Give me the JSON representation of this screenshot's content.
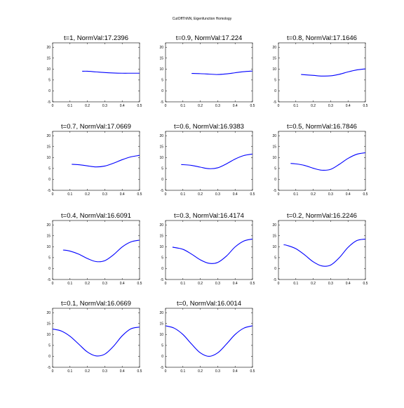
{
  "figure": {
    "suptitle": "CutOffThNN, Eigenfunction Homology"
  },
  "chart_data": [
    {
      "type": "line",
      "title": "t=1,  NormVal:17.2396",
      "xlim": [
        0,
        0.5
      ],
      "ylim": [
        -5,
        22
      ],
      "xticks": [
        0,
        0.1,
        0.2,
        0.3,
        0.4,
        0.5
      ],
      "yticks": [
        -5,
        0,
        5,
        10,
        15,
        20
      ],
      "color": "#0000ff",
      "x": [
        0.17,
        0.2,
        0.25,
        0.3,
        0.35,
        0.4,
        0.45,
        0.5
      ],
      "y": [
        9.0,
        9.0,
        8.7,
        8.4,
        8.2,
        8.1,
        8.1,
        8.1
      ]
    },
    {
      "type": "line",
      "title": "t=0.9, NormVal:17.224",
      "xlim": [
        0,
        0.5
      ],
      "ylim": [
        -5,
        22
      ],
      "xticks": [
        0,
        0.1,
        0.2,
        0.3,
        0.4,
        0.5
      ],
      "yticks": [
        -5,
        0,
        5,
        10,
        15,
        20
      ],
      "color": "#0000ff",
      "x": [
        0.15,
        0.2,
        0.25,
        0.3,
        0.35,
        0.4,
        0.45,
        0.5
      ],
      "y": [
        8.0,
        7.9,
        7.7,
        7.5,
        7.8,
        8.3,
        8.8,
        9.1
      ]
    },
    {
      "type": "line",
      "title": "t=0.8, NormVal:17.1646",
      "xlim": [
        0,
        0.5
      ],
      "ylim": [
        -5,
        22
      ],
      "xticks": [
        0,
        0.1,
        0.2,
        0.3,
        0.4,
        0.5
      ],
      "yticks": [
        -5,
        0,
        5,
        10,
        15,
        20
      ],
      "color": "#0000ff",
      "x": [
        0.13,
        0.2,
        0.25,
        0.3,
        0.35,
        0.4,
        0.45,
        0.5
      ],
      "y": [
        7.5,
        7.1,
        6.8,
        6.9,
        7.6,
        8.7,
        9.6,
        10.1
      ]
    },
    {
      "type": "line",
      "title": "t=0.7,   NormVal:17.0669",
      "xlim": [
        0,
        0.5
      ],
      "ylim": [
        -5,
        22
      ],
      "xticks": [
        0,
        0.1,
        0.2,
        0.3,
        0.4,
        0.5
      ],
      "yticks": [
        -5,
        0,
        5,
        10,
        15,
        20
      ],
      "color": "#0000ff",
      "x": [
        0.11,
        0.15,
        0.2,
        0.25,
        0.3,
        0.35,
        0.4,
        0.45,
        0.5
      ],
      "y": [
        6.9,
        6.7,
        6.2,
        5.7,
        6.1,
        7.4,
        9.0,
        10.3,
        11.0
      ]
    },
    {
      "type": "line",
      "title": "t=0.6,  NormVal:16.9383",
      "xlim": [
        0,
        0.5
      ],
      "ylim": [
        -5,
        22
      ],
      "xticks": [
        0,
        0.1,
        0.2,
        0.3,
        0.4,
        0.5
      ],
      "yticks": [
        -5,
        0,
        5,
        10,
        15,
        20
      ],
      "color": "#0000ff",
      "x": [
        0.09,
        0.15,
        0.2,
        0.25,
        0.3,
        0.35,
        0.4,
        0.45,
        0.5
      ],
      "y": [
        6.8,
        6.4,
        5.6,
        4.9,
        5.3,
        7.1,
        9.3,
        10.9,
        11.6
      ]
    },
    {
      "type": "line",
      "title": "t=0.5,  NormVal:16.7846",
      "xlim": [
        0,
        0.5
      ],
      "ylim": [
        -5,
        22
      ],
      "xticks": [
        0,
        0.1,
        0.2,
        0.3,
        0.4,
        0.5
      ],
      "yticks": [
        -5,
        0,
        5,
        10,
        15,
        20
      ],
      "color": "#0000ff",
      "x": [
        0.07,
        0.1,
        0.15,
        0.2,
        0.25,
        0.3,
        0.35,
        0.4,
        0.45,
        0.5
      ],
      "y": [
        7.3,
        7.1,
        6.4,
        5.1,
        4.2,
        4.6,
        6.9,
        9.6,
        11.5,
        12.2
      ]
    },
    {
      "type": "line",
      "title": "t=0.4,  NormVal:16.6091",
      "xlim": [
        0,
        0.5
      ],
      "ylim": [
        -5,
        22
      ],
      "xticks": [
        0,
        0.1,
        0.2,
        0.3,
        0.4,
        0.5
      ],
      "yticks": [
        -5,
        0,
        5,
        10,
        15,
        20
      ],
      "color": "#0000ff",
      "x": [
        0.06,
        0.1,
        0.15,
        0.2,
        0.25,
        0.3,
        0.35,
        0.4,
        0.45,
        0.5
      ],
      "y": [
        8.5,
        8.0,
        6.6,
        4.6,
        3.2,
        3.6,
        6.3,
        9.9,
        12.2,
        13.0
      ]
    },
    {
      "type": "line",
      "title": "t=0.3, NormVal:16.4174",
      "xlim": [
        0,
        0.5
      ],
      "ylim": [
        -5,
        22
      ],
      "xticks": [
        0,
        0.1,
        0.2,
        0.3,
        0.4,
        0.5
      ],
      "yticks": [
        -5,
        0,
        5,
        10,
        15,
        20
      ],
      "color": "#0000ff",
      "x": [
        0.04,
        0.1,
        0.15,
        0.2,
        0.25,
        0.3,
        0.35,
        0.4,
        0.45,
        0.5
      ],
      "y": [
        9.8,
        8.8,
        6.6,
        4.0,
        2.4,
        2.8,
        5.7,
        9.9,
        12.6,
        13.5
      ]
    },
    {
      "type": "line",
      "title": "t=0.2, NormVal:16.2246",
      "xlim": [
        0,
        0.5
      ],
      "ylim": [
        -5,
        22
      ],
      "xticks": [
        0,
        0.1,
        0.2,
        0.3,
        0.4,
        0.5
      ],
      "yticks": [
        -5,
        0,
        5,
        10,
        15,
        20
      ],
      "color": "#0000ff",
      "x": [
        0.03,
        0.05,
        0.1,
        0.15,
        0.2,
        0.25,
        0.3,
        0.35,
        0.4,
        0.45,
        0.5
      ],
      "y": [
        10.9,
        10.6,
        9.1,
        6.3,
        3.1,
        1.2,
        1.6,
        5.0,
        9.7,
        12.8,
        13.5
      ]
    },
    {
      "type": "line",
      "title": "t=0.1,  NormVal:16.0669",
      "xlim": [
        0,
        0.5
      ],
      "ylim": [
        -5,
        22
      ],
      "xticks": [
        0,
        0.1,
        0.2,
        0.3,
        0.4,
        0.5
      ],
      "yticks": [
        -5,
        0,
        5,
        10,
        15,
        20
      ],
      "color": "#0000ff",
      "x": [
        0,
        0.05,
        0.1,
        0.15,
        0.2,
        0.25,
        0.3,
        0.35,
        0.4,
        0.45,
        0.5
      ],
      "y": [
        12.5,
        11.6,
        9.2,
        5.6,
        2.0,
        0.2,
        1.0,
        4.6,
        9.4,
        12.6,
        13.4
      ]
    },
    {
      "type": "line",
      "title": "t=0,  NormVal:16.0014",
      "xlim": [
        0,
        0.5
      ],
      "ylim": [
        -5,
        22
      ],
      "xticks": [
        0,
        0.1,
        0.2,
        0.3,
        0.4,
        0.5
      ],
      "yticks": [
        -5,
        0,
        5,
        10,
        15,
        20
      ],
      "color": "#0000ff",
      "x": [
        0,
        0.05,
        0.1,
        0.15,
        0.2,
        0.25,
        0.3,
        0.35,
        0.4,
        0.45,
        0.5
      ],
      "y": [
        14.0,
        12.9,
        10.0,
        5.6,
        1.6,
        0.0,
        1.6,
        5.6,
        10.0,
        12.9,
        14.0
      ]
    }
  ]
}
